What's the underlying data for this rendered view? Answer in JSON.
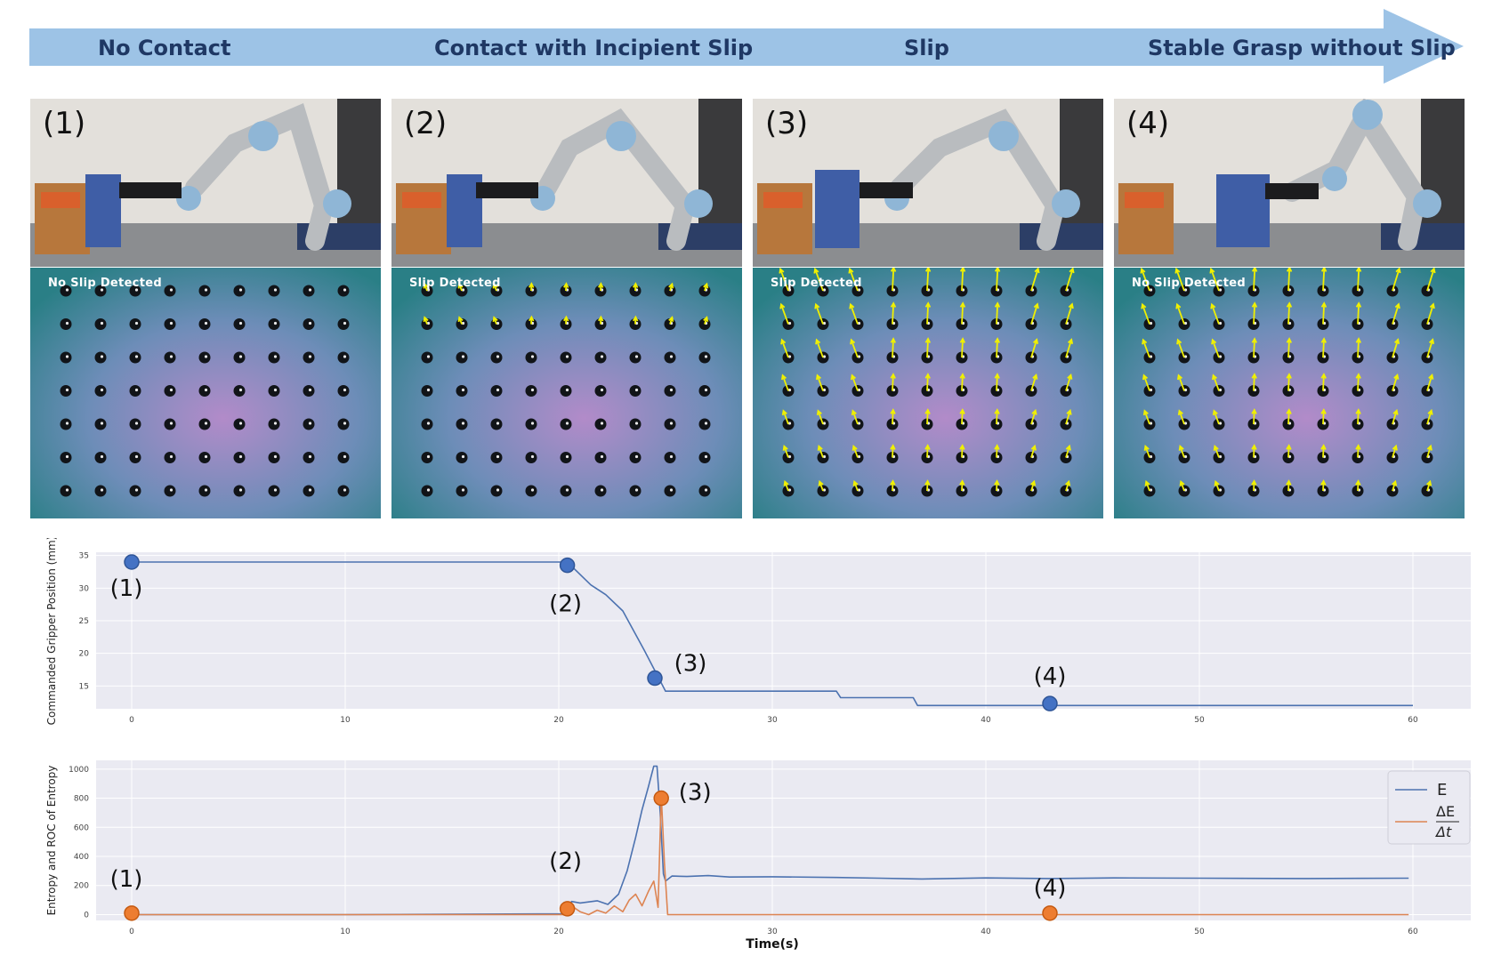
{
  "phases": [
    "No Contact",
    "Contact with Incipient Slip",
    "Slip",
    "Stable Grasp without Slip"
  ],
  "panels": [
    {
      "label": "(1)",
      "status": "No Slip Detected",
      "arrow_strength": 0
    },
    {
      "label": "(2)",
      "status": "Slip Detected",
      "arrow_strength": 0.25
    },
    {
      "label": "(3)",
      "status": "Slip Detected",
      "arrow_strength": 1
    },
    {
      "label": "(4)",
      "status": "No Slip Detected",
      "arrow_strength": 1
    }
  ],
  "colors": {
    "phase_arrow": "#9dc3e6",
    "phase_text": "#1f3864",
    "entropy_line": "#4c72b0",
    "roc_line": "#dd8452",
    "marker_blue": "#4472c4",
    "marker_orange": "#ed7d31",
    "plot_bg": "#eaeaf2",
    "slip_arrow": "#f0f000"
  },
  "chart_data": [
    {
      "type": "line",
      "title": "",
      "ylabel": "Commanded Gripper Position (mm)",
      "xlabel": "",
      "xlim": [
        0,
        60
      ],
      "ylim": [
        11.5,
        35.5
      ],
      "xticks": [
        0,
        10,
        20,
        30,
        40,
        50,
        60
      ],
      "yticks": [
        15,
        20,
        25,
        30,
        35
      ],
      "series": [
        {
          "name": "position",
          "x": [
            0,
            20.4,
            21.5,
            22.2,
            23.0,
            24.0,
            25.0,
            33.0,
            33.2,
            36.6,
            36.8,
            60
          ],
          "y": [
            34.0,
            34.0,
            30.5,
            29.0,
            26.5,
            20.5,
            14.2,
            14.2,
            13.2,
            13.2,
            12.0,
            12.0
          ]
        }
      ],
      "markers": [
        {
          "label": "(1)",
          "x": 0,
          "y": 34.0
        },
        {
          "label": "(2)",
          "x": 20.4,
          "y": 33.5
        },
        {
          "label": "(3)",
          "x": 24.5,
          "y": 16.2
        },
        {
          "label": "(4)",
          "x": 43,
          "y": 12.3
        }
      ]
    },
    {
      "type": "line",
      "title": "",
      "ylabel": "Entropy and ROC of Entropy",
      "xlabel": "Time(s)",
      "xlim": [
        0,
        60
      ],
      "ylim": [
        -40,
        1060
      ],
      "xticks": [
        0,
        10,
        20,
        30,
        40,
        50,
        60
      ],
      "yticks": [
        0,
        200,
        400,
        600,
        800,
        1000
      ],
      "legend": {
        "position": "top-right",
        "entries": [
          "E",
          "ΔE",
          "Δt"
        ]
      },
      "series": [
        {
          "name": "E",
          "x": [
            0,
            10,
            20.3,
            20.6,
            21.0,
            21.8,
            22.3,
            22.8,
            23.2,
            23.6,
            23.9,
            24.2,
            24.45,
            24.6,
            24.75,
            24.9,
            25.0,
            25.3,
            26,
            27,
            28,
            30,
            33,
            35,
            37,
            40,
            43,
            46,
            50,
            55,
            59.8
          ],
          "y": [
            0,
            0,
            5,
            90,
            80,
            95,
            70,
            140,
            300,
            530,
            720,
            880,
            1020,
            1020,
            700,
            280,
            230,
            265,
            262,
            268,
            258,
            260,
            255,
            250,
            245,
            252,
            248,
            252,
            250,
            248,
            250
          ]
        },
        {
          "name": "ΔE/Δt",
          "x": [
            0,
            10,
            20.3,
            20.6,
            21.0,
            21.4,
            21.8,
            22.2,
            22.6,
            23.0,
            23.3,
            23.6,
            23.9,
            24.2,
            24.45,
            24.65,
            24.8,
            24.95,
            25.1,
            25.4,
            27,
            30,
            40,
            43,
            50,
            59.8
          ],
          "y": [
            0,
            0,
            0,
            60,
            20,
            0,
            30,
            10,
            60,
            20,
            100,
            140,
            60,
            160,
            230,
            50,
            820,
            350,
            0,
            0,
            0,
            0,
            0,
            0,
            0,
            0
          ]
        }
      ],
      "markers": [
        {
          "label": "(1)",
          "x": 0,
          "y": 10
        },
        {
          "label": "(2)",
          "x": 20.4,
          "y": 40
        },
        {
          "label": "(3)",
          "x": 24.8,
          "y": 800
        },
        {
          "label": "(4)",
          "x": 43,
          "y": 10
        }
      ]
    }
  ]
}
